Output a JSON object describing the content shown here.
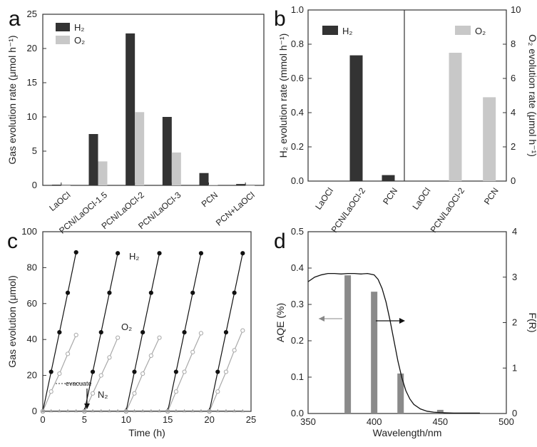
{
  "panels": {
    "a": {
      "letter": "a"
    },
    "b": {
      "letter": "b"
    },
    "c": {
      "letter": "c"
    },
    "d": {
      "letter": "d"
    }
  },
  "colors": {
    "h2": "#333333",
    "o2": "#c8c8c8",
    "line": "#111111",
    "afr": "#8a8a8a"
  },
  "chart_data": [
    {
      "id": "a",
      "type": "bar",
      "ylabel": "Gas evolution rate (μmol h⁻¹)",
      "ylim": [
        0,
        25
      ],
      "yticks": [
        0,
        5,
        10,
        15,
        20,
        25
      ],
      "categories": [
        "LaOCl",
        "PCN/LaOCl-1.5",
        "PCN/LaOCl-2",
        "PCN/LaOCl-3",
        "PCN",
        "PCN+LaOCl"
      ],
      "legend": "top-left",
      "series": [
        {
          "name": "H₂",
          "values": [
            0.1,
            7.5,
            22.2,
            10.0,
            1.8,
            0.2
          ]
        },
        {
          "name": "O₂",
          "values": [
            0.0,
            3.5,
            10.7,
            4.8,
            0.1,
            0.0
          ]
        }
      ]
    },
    {
      "id": "b",
      "type": "bar",
      "ylabel_left": "H₂ evolution rate (mmol h⁻¹)",
      "ylabel_right": "O₂ evolution rate (μmol h⁻¹)",
      "ylim_left": [
        0,
        1.0
      ],
      "yticks_left": [
        "0.0",
        "0.2",
        "0.4",
        "0.6",
        "0.8",
        "1.0"
      ],
      "ylim_right": [
        0,
        10
      ],
      "yticks_right": [
        "0",
        "2",
        "4",
        "6",
        "8",
        "10"
      ],
      "categories_left": [
        "LaOCl",
        "PCN/LaOCl-2",
        "PCN"
      ],
      "categories_right": [
        "LaOCl",
        "PCN/LaOCl-2",
        "PCN"
      ],
      "series": [
        {
          "name": "H₂",
          "axis": "left",
          "values": [
            0.0,
            0.735,
            0.035
          ]
        },
        {
          "name": "O₂",
          "axis": "right",
          "values": [
            0.0,
            7.5,
            4.9
          ]
        }
      ]
    },
    {
      "id": "c",
      "type": "line",
      "xlabel": "Time (h)",
      "ylabel": "Gas evolution (μmol)",
      "xlim": [
        0,
        25
      ],
      "xticks": [
        0,
        5,
        10,
        15,
        20,
        25
      ],
      "ylim": [
        0,
        100
      ],
      "yticks": [
        0,
        20,
        40,
        60,
        80,
        100
      ],
      "annotation": "evacuate",
      "series": [
        {
          "name": "H₂",
          "cycles": [
            [
              [
                0,
                0
              ],
              [
                1,
                22
              ],
              [
                2,
                44
              ],
              [
                3,
                66
              ],
              [
                4,
                88.5
              ]
            ],
            [
              [
                5,
                0
              ],
              [
                6,
                22
              ],
              [
                7,
                44
              ],
              [
                8,
                66
              ],
              [
                9,
                88
              ]
            ],
            [
              [
                10,
                0
              ],
              [
                11,
                22
              ],
              [
                12,
                44
              ],
              [
                13,
                66
              ],
              [
                14,
                88
              ]
            ],
            [
              [
                15,
                0
              ],
              [
                16,
                22
              ],
              [
                17,
                44
              ],
              [
                18,
                66
              ],
              [
                19,
                88
              ]
            ],
            [
              [
                20,
                0
              ],
              [
                21,
                22
              ],
              [
                22,
                44
              ],
              [
                23,
                66
              ],
              [
                24,
                88
              ]
            ]
          ]
        },
        {
          "name": "O₂",
          "cycles": [
            [
              [
                0,
                0
              ],
              [
                1,
                11
              ],
              [
                2,
                21
              ],
              [
                3,
                32
              ],
              [
                4,
                42.5
              ]
            ],
            [
              [
                5,
                0
              ],
              [
                6,
                10
              ],
              [
                7,
                20
              ],
              [
                8,
                30
              ],
              [
                9,
                41
              ]
            ],
            [
              [
                10,
                0
              ],
              [
                11,
                10
              ],
              [
                12,
                21
              ],
              [
                13,
                31
              ],
              [
                14,
                41
              ]
            ],
            [
              [
                15,
                0
              ],
              [
                16,
                11
              ],
              [
                17,
                22
              ],
              [
                18,
                33
              ],
              [
                19,
                43.5
              ]
            ],
            [
              [
                20,
                0
              ],
              [
                21,
                11
              ],
              [
                22,
                22
              ],
              [
                23,
                34
              ],
              [
                24,
                45
              ]
            ]
          ]
        },
        {
          "name": "N₂",
          "points": [
            [
              0,
              0.3
            ],
            [
              1,
              0.3
            ],
            [
              2,
              0.3
            ],
            [
              3,
              0.3
            ],
            [
              4,
              0.3
            ],
            [
              5,
              0.3
            ],
            [
              6,
              0.3
            ],
            [
              7,
              0.3
            ],
            [
              8,
              0.3
            ],
            [
              9,
              0.3
            ],
            [
              10,
              0.3
            ],
            [
              11,
              0.3
            ],
            [
              12,
              0.3
            ],
            [
              13,
              0.3
            ],
            [
              14,
              0.3
            ],
            [
              15,
              0.3
            ],
            [
              16,
              0.3
            ],
            [
              17,
              0.3
            ],
            [
              18,
              0.3
            ],
            [
              19,
              0.3
            ],
            [
              20,
              0.3
            ],
            [
              21,
              0.3
            ],
            [
              22,
              0.3
            ],
            [
              23,
              0.3
            ],
            [
              24,
              0.3
            ]
          ]
        }
      ]
    },
    {
      "id": "d",
      "type": "bar",
      "xlabel": "Wavelength/nm",
      "ylabel_left": "AQE (%)",
      "ylabel_right": "F(R)",
      "xlim": [
        350,
        500
      ],
      "xticks": [
        350,
        400,
        450,
        500
      ],
      "ylim_left": [
        0,
        0.5
      ],
      "yticks_left": [
        "0.0",
        "0.1",
        "0.2",
        "0.3",
        "0.4",
        "0.5"
      ],
      "ylim_right": [
        0,
        4
      ],
      "yticks_right": [
        "0",
        "1",
        "2",
        "3",
        "4"
      ],
      "bars": [
        {
          "x": 380,
          "value": 0.38
        },
        {
          "x": 400,
          "value": 0.335
        },
        {
          "x": 420,
          "value": 0.11
        },
        {
          "x": 450,
          "value": 0.01
        }
      ],
      "curve": {
        "axis": "right",
        "x": [
          350,
          355,
          360,
          365,
          370,
          375,
          380,
          385,
          390,
          395,
          400,
          403,
          406,
          409,
          412,
          415,
          418,
          421,
          424,
          427,
          430,
          435,
          440,
          445,
          450,
          460,
          470,
          480
        ],
        "y": [
          2.9,
          3.0,
          3.05,
          3.08,
          3.08,
          3.07,
          3.08,
          3.08,
          3.07,
          3.08,
          3.05,
          2.95,
          2.75,
          2.45,
          2.05,
          1.6,
          1.15,
          0.78,
          0.5,
          0.32,
          0.2,
          0.1,
          0.05,
          0.03,
          0.02,
          0.01,
          0.01,
          0.01
        ]
      }
    }
  ]
}
